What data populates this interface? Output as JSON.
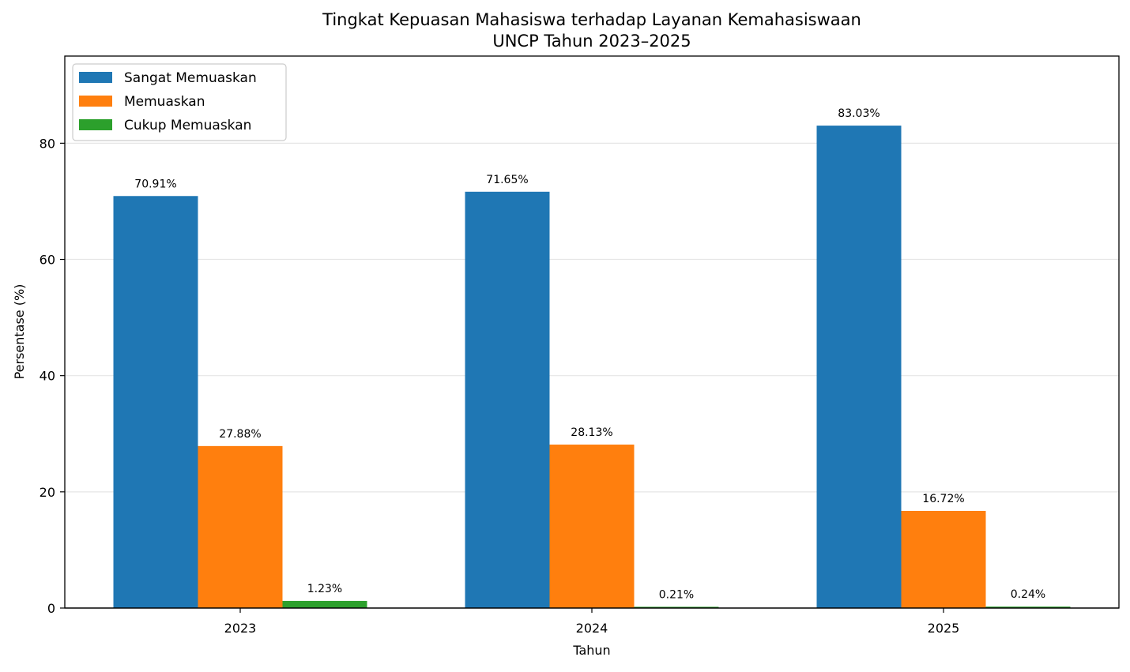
{
  "chart_data": {
    "type": "bar",
    "title": "Tingkat Kepuasan Mahasiswa terhadap Layanan Kemahasiswaan",
    "subtitle": "UNCP Tahun 2023–2025",
    "xlabel": "Tahun",
    "ylabel": "Persentase (%)",
    "categories": [
      "2023",
      "2024",
      "2025"
    ],
    "ylim": [
      0,
      95
    ],
    "yticks": [
      0,
      20,
      40,
      60,
      80
    ],
    "ytick_labels": [
      "0",
      "20",
      "40",
      "60",
      "80"
    ],
    "grid": "horizontal",
    "legend_position": "upper left",
    "series": [
      {
        "name": "Sangat Memuaskan",
        "color": "#1f77b4",
        "values": [
          70.91,
          71.65,
          83.03
        ],
        "labels": [
          "70.91%",
          "71.65%",
          "83.03%"
        ]
      },
      {
        "name": "Memuaskan",
        "color": "#ff7f0e",
        "values": [
          27.88,
          28.13,
          16.72
        ],
        "labels": [
          "27.88%",
          "28.13%",
          "16.72%"
        ]
      },
      {
        "name": "Cukup Memuaskan",
        "color": "#2ca02c",
        "values": [
          1.23,
          0.21,
          0.24
        ],
        "labels": [
          "1.23%",
          "0.21%",
          "0.24%"
        ]
      }
    ]
  }
}
